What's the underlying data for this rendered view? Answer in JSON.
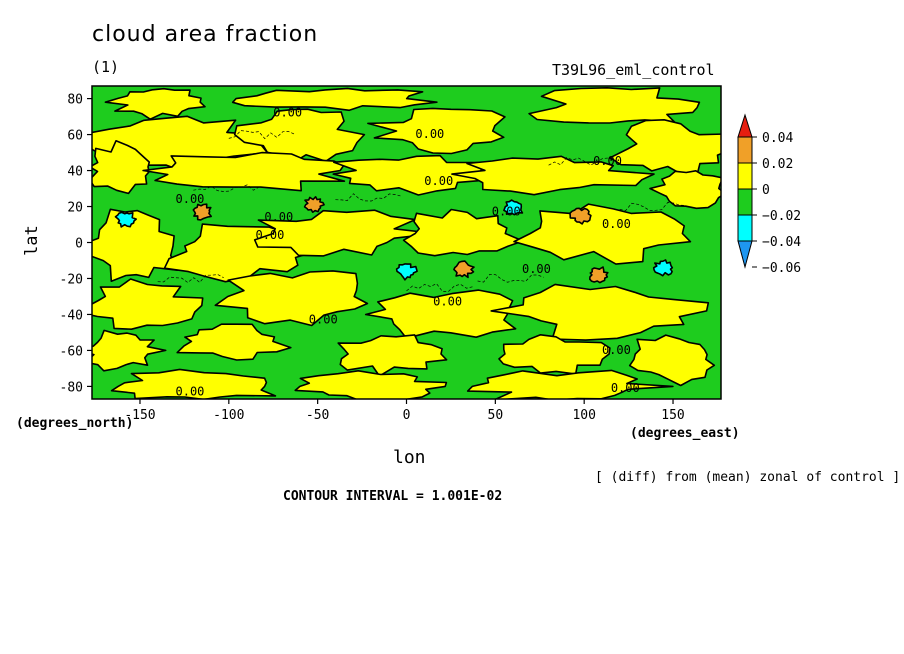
{
  "header": {
    "title": "cloud area fraction",
    "subtitle": "(1)",
    "dataset": "T39L96_eml_control"
  },
  "footer": {
    "note": "[ (diff) from (mean) zonal of control ]",
    "contour_interval": "CONTOUR INTERVAL = 1.001E-02"
  },
  "chart_data": {
    "type": "heatmap",
    "title": "cloud area fraction",
    "subtitle": "(1)",
    "xlabel": "lon",
    "ylabel": "lat",
    "x_units": "(degrees_east)",
    "y_units": "(degrees_north)",
    "xlim": [
      -177,
      177
    ],
    "ylim": [
      -87,
      87
    ],
    "x_ticks": [
      -150,
      -100,
      -50,
      0,
      50,
      100,
      150
    ],
    "y_ticks": [
      -80,
      -60,
      -40,
      -20,
      0,
      20,
      40,
      60,
      80
    ],
    "contour_label": "0.00",
    "contour_label_positions": [
      {
        "lon": -130,
        "lat": 22
      },
      {
        "lon": -80,
        "lat": 12
      },
      {
        "lon": -85,
        "lat": 2
      },
      {
        "lon": -75,
        "lat": 70
      },
      {
        "lon": 5,
        "lat": 58
      },
      {
        "lon": 10,
        "lat": 32
      },
      {
        "lon": 48,
        "lat": 15
      },
      {
        "lon": 110,
        "lat": 8
      },
      {
        "lon": 105,
        "lat": 43
      },
      {
        "lon": 15,
        "lat": -35
      },
      {
        "lon": 65,
        "lat": -17
      },
      {
        "lon": -55,
        "lat": -45
      },
      {
        "lon": 110,
        "lat": -62
      },
      {
        "lon": -130,
        "lat": -85
      },
      {
        "lon": 115,
        "lat": -83
      }
    ],
    "colorbar": {
      "labels": [
        "0.04",
        "0.02",
        "0",
        "−0.02",
        "−0.04",
        "−0.06"
      ],
      "colors": [
        "#e51e10",
        "#f0a028",
        "#ffff00",
        "#1ecc1e",
        "#00ffff",
        "#1e96f0"
      ]
    },
    "anomalies": [
      {
        "lon": -115,
        "lat": 17,
        "value": 0.02
      },
      {
        "lon": -52,
        "lat": 21,
        "value": 0.02
      },
      {
        "lon": 32,
        "lat": -15,
        "value": 0.02
      },
      {
        "lon": 98,
        "lat": 15,
        "value": 0.02
      },
      {
        "lon": 108,
        "lat": -18,
        "value": 0.02
      },
      {
        "lon": -158,
        "lat": 13,
        "value": -0.02
      },
      {
        "lon": 60,
        "lat": 19,
        "value": -0.04
      },
      {
        "lon": 0,
        "lat": -16,
        "value": -0.02
      },
      {
        "lon": 145,
        "lat": -14,
        "value": -0.02
      }
    ]
  }
}
